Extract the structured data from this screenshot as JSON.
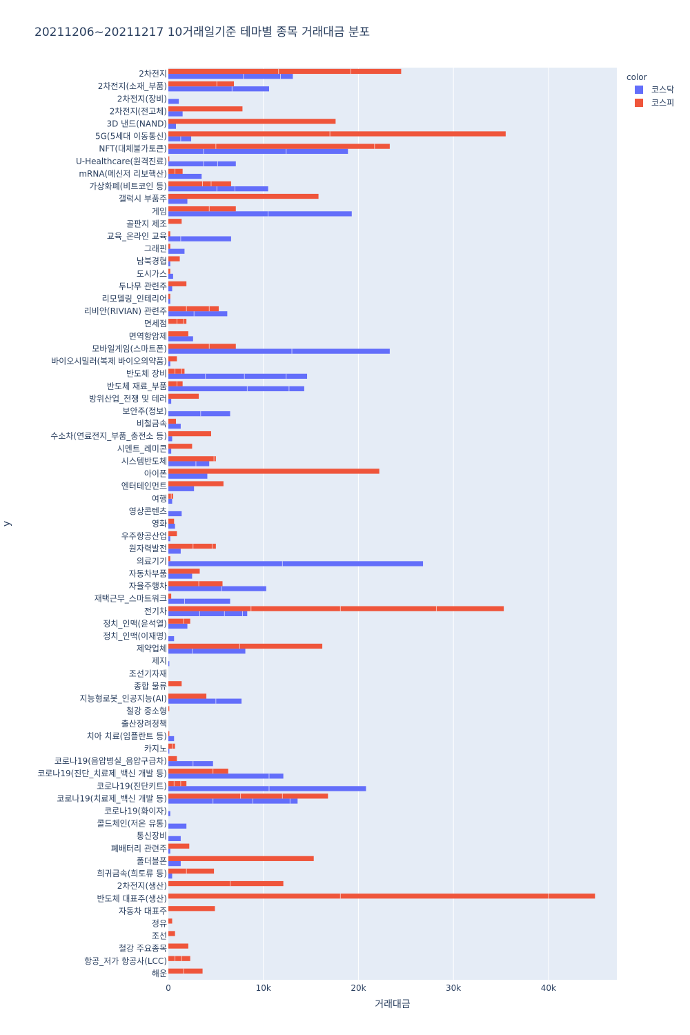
{
  "chart_data": {
    "type": "bar",
    "orientation": "horizontal",
    "barmode": "group",
    "title": "20211206~20211217 10거래일기준 테마별 종목 거래대금 분포",
    "xlabel": "거래대금",
    "ylabel": "y",
    "xlim": [
      0,
      47200
    ],
    "x_ticks": [
      0,
      10000,
      20000,
      30000,
      40000
    ],
    "x_tick_labels": [
      "0",
      "10k",
      "20k",
      "30k",
      "40k"
    ],
    "grid": true,
    "legend": {
      "title": "color",
      "position": "top-right"
    },
    "categories": [
      "해운",
      "항공_저가 항공사(LCC)",
      "철강 주요종목",
      "조선",
      "정유",
      "자동차 대표주",
      "반도체 대표주(생산)",
      "2차전지(생산)",
      "희귀금속(희토류 등)",
      "폴더블폰",
      "폐배터리 관련주",
      "통신장비",
      "콜드체인(저온 유통)",
      "코로나19(화이자)",
      "코로나19(치료제_백신 개발 등)",
      "코로나19(진단키트)",
      "코로나19(진단_치료제_백신 개발 등)",
      "코로나19(음압병실_음압구급차)",
      "카지노",
      "치아 치료(임플란트 등)",
      "출산장려정책",
      "철강 중소형",
      "지능형로봇_인공지능(AI)",
      "종합 물류",
      "조선기자재",
      "제지",
      "제약업체",
      "정치_인맥(이재명)",
      "정치_인맥(윤석열)",
      "전기차",
      "재택근무_스마트워크",
      "자율주행차",
      "자동차부품",
      "의료기기",
      "원자력발전",
      "우주항공산업",
      "영화",
      "영상콘텐츠",
      "여행",
      "엔터테인먼트",
      "아이폰",
      "시스템반도체",
      "시멘트_레미콘",
      "수소차(연료전지_부품_충전소 등)",
      "비철금속",
      "보안주(정보)",
      "방위산업_전쟁 및 테러",
      "반도체 재료_부품",
      "반도체 장비",
      "바이오시밀러(복제 바이오의약품)",
      "모바일게임(스마트폰)",
      "면역항암제",
      "면세점",
      "리비안(RIVIAN) 관련주",
      "리모델링_인테리어",
      "두나무 관련주",
      "도시가스",
      "남북경협",
      "그래핀",
      "교육_온라인 교육",
      "골판지 제조",
      "게임",
      "갤럭시 부품주",
      "가상화폐(비트코인 등)",
      "mRNA(메신저 리보핵산)",
      "U-Healthcare(원격진료)",
      "NFT(대체불가토큰)",
      "5G(5세대 이동통신)",
      "3D 낸드(NAND)",
      "2차전지(전고체)",
      "2차전지(장비)",
      "2차전지(소재_부품)",
      "2차전지"
    ],
    "series": [
      {
        "name": "코스닥",
        "color": "#636efa",
        "values": [
          0,
          0,
          0,
          0,
          0,
          0,
          0,
          0,
          400,
          1300,
          200,
          1300,
          1900,
          200,
          13600,
          20800,
          12100,
          4700,
          100,
          600,
          0,
          0,
          7700,
          0,
          0,
          100,
          8100,
          600,
          2000,
          8300,
          6500,
          10300,
          2500,
          26800,
          1300,
          200,
          700,
          1400,
          400,
          2700,
          4100,
          4300,
          300,
          400,
          1300,
          6500,
          300,
          14300,
          14600,
          200,
          23300,
          2600,
          0,
          6200,
          200,
          400,
          500,
          200,
          1700,
          6600,
          0,
          19300,
          2000,
          10500,
          3500,
          7100,
          18900,
          2400,
          800,
          1500,
          1100,
          10600,
          13100
        ]
      },
      {
        "name": "코스피",
        "color": "#ef553b",
        "values": [
          3600,
          2300,
          2100,
          700,
          400,
          4900,
          44900,
          12100,
          4800,
          15300,
          2200,
          0,
          0,
          0,
          16800,
          1900,
          6300,
          900,
          700,
          100,
          0,
          100,
          4000,
          1400,
          0,
          0,
          16200,
          0,
          2300,
          35300,
          300,
          5700,
          3300,
          200,
          5000,
          900,
          600,
          0,
          500,
          5800,
          22200,
          5000,
          2500,
          4500,
          800,
          0,
          3200,
          1500,
          1700,
          900,
          7100,
          2100,
          1900,
          5300,
          200,
          1900,
          200,
          1200,
          200,
          200,
          1400,
          7100,
          15800,
          6600,
          1500,
          100,
          23300,
          35500,
          17600,
          7800,
          0,
          6900,
          24500
        ]
      }
    ],
    "segments": {
      "코스닥": [
        [],
        [],
        [],
        [],
        [],
        [],
        [],
        [],
        [],
        [],
        [],
        [],
        [],
        [],
        [
          4700,
          8900,
          12800
        ],
        [
          10600
        ],
        [
          10600
        ],
        [
          2600
        ],
        [],
        [],
        [],
        [],
        [
          5000
        ],
        [],
        [],
        [],
        [
          2500
        ],
        [],
        [],
        [
          3300,
          5900,
          7800
        ],
        [
          1700
        ],
        [
          5600
        ],
        [],
        [
          12000
        ],
        [],
        [],
        [],
        [],
        [],
        [],
        [],
        [
          2900
        ],
        [],
        [],
        [],
        [
          3400
        ],
        [],
        [
          8300,
          12700
        ],
        [
          3900,
          8000,
          12400
        ],
        [],
        [
          13000
        ],
        [],
        [],
        [
          2700
        ],
        [],
        [],
        [],
        [],
        [],
        [
          1300
        ],
        [],
        [
          10500
        ],
        [],
        [
          5100,
          7000
        ],
        [],
        [
          3700,
          5200
        ],
        [
          3700,
          12400
        ],
        [
          1300
        ],
        [],
        [],
        [],
        [
          6700
        ],
        [
          7900,
          11800
        ]
      ],
      "코스피": [
        [
          1600
        ],
        [
          700,
          1400
        ],
        [],
        [],
        [],
        [],
        [
          18100,
          40000
        ],
        [
          6500
        ],
        [
          1900
        ],
        [],
        [],
        [],
        [],
        [],
        [
          7600,
          12000
        ],
        [
          600,
          1300
        ],
        [
          4700
        ],
        [],
        [
          400
        ],
        [],
        [],
        [],
        [],
        [],
        [],
        [],
        [
          7500
        ],
        [],
        [
          1600
        ],
        [
          8700,
          18100,
          28200
        ],
        [],
        [
          3200
        ],
        [],
        [],
        [
          2600,
          4600
        ],
        [],
        [],
        [],
        [
          300
        ],
        [],
        [],
        [
          4800
        ],
        [],
        [],
        [],
        [],
        [],
        [
          900
        ],
        [
          700,
          1400
        ],
        [],
        [
          4300
        ],
        [],
        [
          900,
          1600
        ],
        [
          1900,
          4300
        ],
        [],
        [],
        [],
        [],
        [],
        [],
        [],
        [
          4300
        ],
        [],
        [
          3600,
          4500
        ],
        [
          700
        ],
        [],
        [
          5000,
          21700
        ],
        [
          17000
        ],
        [],
        [],
        [],
        [
          5100
        ],
        [
          11600,
          19200
        ]
      ]
    }
  }
}
